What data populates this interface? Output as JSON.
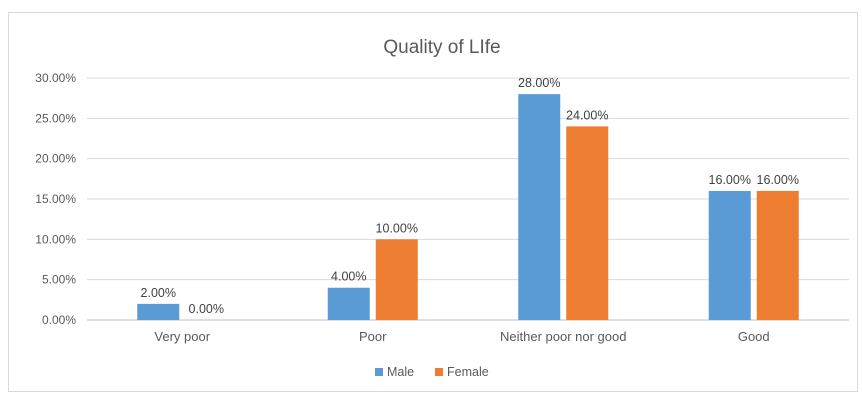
{
  "chart_data": {
    "type": "bar",
    "title": "Quality of LIfe",
    "categories": [
      "Very poor",
      "Poor",
      "Neither poor nor good",
      "Good"
    ],
    "series": [
      {
        "name": "Male",
        "values": [
          2.0,
          4.0,
          28.0,
          16.0
        ],
        "color": "#5b9bd5"
      },
      {
        "name": "Female",
        "values": [
          0.0,
          10.0,
          24.0,
          16.0
        ],
        "color": "#ed7d31"
      }
    ],
    "data_labels": [
      [
        "2.00%",
        "4.00%",
        "28.00%",
        "16.00%"
      ],
      [
        "0.00%",
        "10.00%",
        "24.00%",
        "16.00%"
      ]
    ],
    "y_ticks": [
      "0.00%",
      "5.00%",
      "10.00%",
      "15.00%",
      "20.00%",
      "25.00%",
      "30.00%"
    ],
    "ylim": [
      0,
      30
    ],
    "y_step": 5,
    "xlabel": "",
    "ylabel": "",
    "grid": true,
    "legend_position": "bottom",
    "colors": {
      "gridline": "#d9d9d9",
      "axis": "#bfbfbf"
    }
  }
}
